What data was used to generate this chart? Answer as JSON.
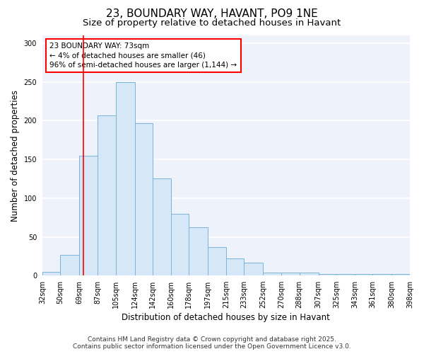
{
  "title": "23, BOUNDARY WAY, HAVANT, PO9 1NE",
  "subtitle": "Size of property relative to detached houses in Havant",
  "xlabel": "Distribution of detached houses by size in Havant",
  "ylabel": "Number of detached properties",
  "bar_color": "#d6e8f7",
  "bar_edge_color": "#7ab3d9",
  "background_color": "#ffffff",
  "plot_bg_color": "#eef3fb",
  "grid_color": "#ffffff",
  "bin_labels": [
    "32sqm",
    "50sqm",
    "69sqm",
    "87sqm",
    "105sqm",
    "124sqm",
    "142sqm",
    "160sqm",
    "178sqm",
    "197sqm",
    "215sqm",
    "233sqm",
    "252sqm",
    "270sqm",
    "288sqm",
    "307sqm",
    "325sqm",
    "343sqm",
    "361sqm",
    "380sqm",
    "398sqm"
  ],
  "bin_edges": [
    32,
    50,
    69,
    87,
    105,
    124,
    142,
    160,
    178,
    197,
    215,
    233,
    252,
    270,
    288,
    307,
    325,
    343,
    361,
    380,
    398
  ],
  "bar_heights": [
    5,
    27,
    155,
    207,
    250,
    197,
    125,
    80,
    62,
    37,
    22,
    17,
    4,
    4,
    4,
    2,
    2,
    2,
    2,
    2
  ],
  "red_line_x": 73,
  "annotation_text": "23 BOUNDARY WAY: 73sqm\n← 4% of detached houses are smaller (46)\n96% of semi-detached houses are larger (1,144) →",
  "ylim": [
    0,
    310
  ],
  "yticks": [
    0,
    50,
    100,
    150,
    200,
    250,
    300
  ],
  "footnote": "Contains HM Land Registry data © Crown copyright and database right 2025.\nContains public sector information licensed under the Open Government Licence v3.0.",
  "title_fontsize": 11,
  "subtitle_fontsize": 9.5,
  "label_fontsize": 8.5,
  "tick_fontsize": 7,
  "annot_fontsize": 7.5,
  "footnote_fontsize": 6.5
}
